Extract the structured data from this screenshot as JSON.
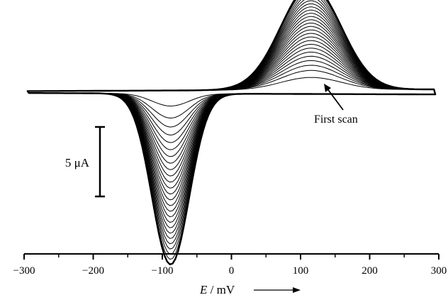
{
  "chart_data": {
    "type": "line",
    "title": "",
    "xlabel": {
      "symbol": "E",
      "unit": " / mV"
    },
    "xlim": [
      -300,
      300
    ],
    "x_ticks": [
      "−300",
      "−200",
      "−100",
      "0",
      "100",
      "200",
      "300"
    ],
    "x_tick_values": [
      -300,
      -200,
      -100,
      0,
      100,
      200,
      300
    ],
    "y_axis": "none (scale bar only)",
    "scale_bar": {
      "label": "5 μA",
      "value_uA": 5
    },
    "grid": false,
    "legend": "none",
    "series_description": "repeated cyclic voltammetry scans; peak currents grow with each successive scan",
    "n_scans": 26,
    "scan_range_mV": [
      -295,
      295
    ],
    "anodic_peak": {
      "potential_mV": 115,
      "current_first_scan_uA": 0.9,
      "current_last_scan_uA": 7.5
    },
    "cathodic_peak": {
      "potential_mV": -88,
      "current_first_scan_uA": -0.9,
      "current_last_scan_uA": -12.3
    },
    "annotations": [
      {
        "text": "First scan",
        "points_to": "innermost (first) scan near +130 mV"
      }
    ],
    "line_color": "#000000"
  }
}
